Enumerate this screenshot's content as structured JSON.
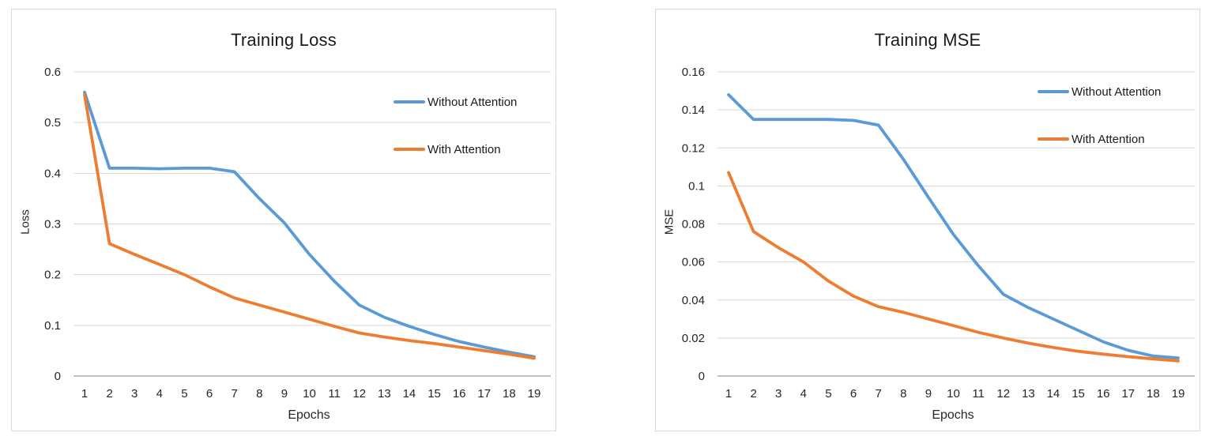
{
  "page": {
    "background": "#ffffff",
    "border_color": "#d9d9d9"
  },
  "colors": {
    "without_attention": "#5B9BD5",
    "with_attention": "#ED7D31",
    "gridline": "#d9d9d9",
    "axis_line": "#ababab",
    "tick_text": "#262626",
    "title_text": "#1a1a1a"
  },
  "chart_data": [
    {
      "type": "line",
      "title": "Training Loss",
      "xlabel": "Epochs",
      "ylabel": "Loss",
      "categories": [
        1,
        2,
        3,
        4,
        5,
        6,
        7,
        8,
        9,
        10,
        11,
        12,
        13,
        14,
        15,
        16,
        17,
        18,
        19
      ],
      "yticks": [
        0,
        0.1,
        0.2,
        0.3,
        0.4,
        0.5,
        0.6
      ],
      "ytick_labels": [
        "0",
        "0.1",
        "0.2",
        "0.3",
        "0.4",
        "0.5",
        "0.6"
      ],
      "ylim": [
        0,
        0.625
      ],
      "grid": "horizontal-only",
      "legend_position": "inside-right",
      "series": [
        {
          "name": "Without Attention",
          "color": "#5B9BD5",
          "values": [
            0.56,
            0.41,
            0.41,
            0.409,
            0.41,
            0.41,
            0.403,
            0.35,
            0.302,
            0.24,
            0.187,
            0.14,
            0.116,
            0.098,
            0.082,
            0.068,
            0.057,
            0.047,
            0.038
          ]
        },
        {
          "name": "With Attention",
          "color": "#ED7D31",
          "values": [
            0.555,
            0.261,
            0.24,
            0.22,
            0.2,
            0.176,
            0.154,
            0.14,
            0.126,
            0.112,
            0.098,
            0.085,
            0.077,
            0.07,
            0.064,
            0.057,
            0.05,
            0.043,
            0.035
          ]
        }
      ]
    },
    {
      "type": "line",
      "title": "Training MSE",
      "xlabel": "Epochs",
      "ylabel": "MSE",
      "categories": [
        1,
        2,
        3,
        4,
        5,
        6,
        7,
        8,
        9,
        10,
        11,
        12,
        13,
        14,
        15,
        16,
        17,
        18,
        19
      ],
      "yticks": [
        0,
        0.02,
        0.04,
        0.06,
        0.08,
        0.1,
        0.12,
        0.14,
        0.16
      ],
      "ytick_labels": [
        "0",
        "0.02",
        "0.04",
        "0.06",
        "0.08",
        "0.1",
        "0.12",
        "0.14",
        "0.16"
      ],
      "ylim": [
        0,
        0.166
      ],
      "grid": "horizontal-only",
      "legend_position": "inside-right",
      "series": [
        {
          "name": "Without Attention",
          "color": "#5B9BD5",
          "values": [
            0.148,
            0.135,
            0.135,
            0.135,
            0.135,
            0.1345,
            0.132,
            0.114,
            0.094,
            0.0745,
            0.058,
            0.043,
            0.036,
            0.03,
            0.024,
            0.018,
            0.0135,
            0.0105,
            0.0095
          ]
        },
        {
          "name": "With Attention",
          "color": "#ED7D31",
          "values": [
            0.107,
            0.076,
            0.0675,
            0.06,
            0.05,
            0.042,
            0.0365,
            0.0335,
            0.03,
            0.0265,
            0.023,
            0.02,
            0.0173,
            0.015,
            0.013,
            0.0115,
            0.0102,
            0.009,
            0.008
          ]
        }
      ]
    }
  ]
}
